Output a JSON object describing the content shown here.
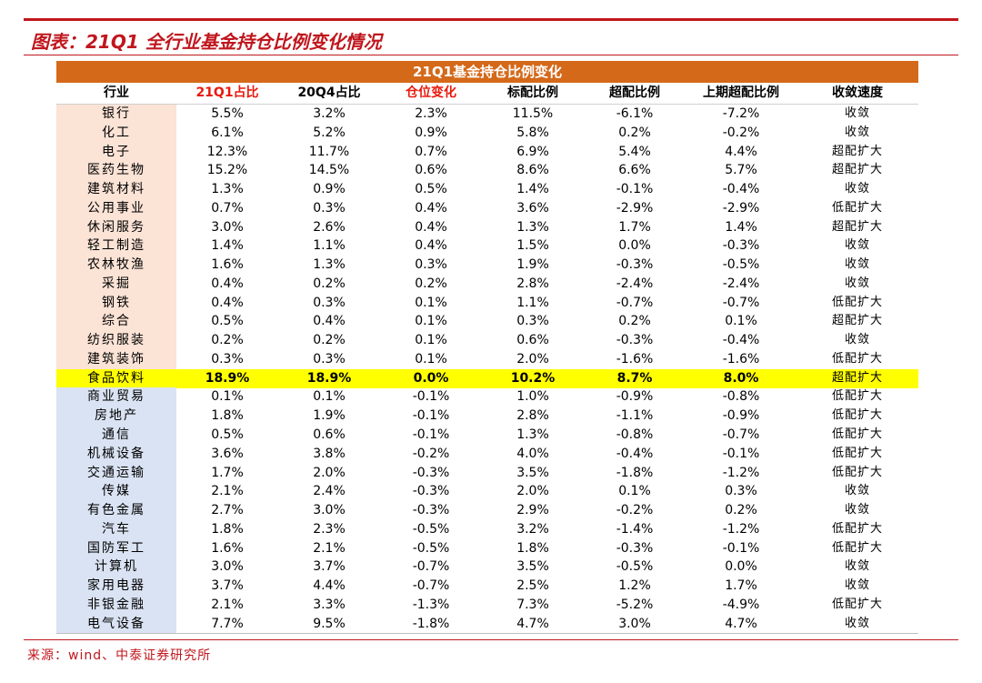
{
  "figure": {
    "title": "图表：21Q1 全行业基金持仓比例变化情况",
    "source": "来源：wind、中泰证券研究所"
  },
  "colors": {
    "brand_red": "#c0161d",
    "banner_orange": "#d4691a",
    "header_red": "#e8190c",
    "top_group_bg": "#fbe3d6",
    "bottom_group_bg": "#dae3f3",
    "highlight_yellow": "#ffff00"
  },
  "table": {
    "banner": "21Q1基金持仓比例变化",
    "headers": [
      "行业",
      "21Q1占比",
      "20Q4占比",
      "仓位变化",
      "标配比例",
      "超配比例",
      "上期超配比例",
      "收敛速度"
    ],
    "rows": [
      [
        "银行",
        "5.5%",
        "3.2%",
        "2.3%",
        "11.5%",
        "-6.1%",
        "-7.2%",
        "收敛"
      ],
      [
        "化工",
        "6.1%",
        "5.2%",
        "0.9%",
        "5.8%",
        "0.2%",
        "-0.2%",
        "收敛"
      ],
      [
        "电子",
        "12.3%",
        "11.7%",
        "0.7%",
        "6.9%",
        "5.4%",
        "4.4%",
        "超配扩大"
      ],
      [
        "医药生物",
        "15.2%",
        "14.5%",
        "0.6%",
        "8.6%",
        "6.6%",
        "5.7%",
        "超配扩大"
      ],
      [
        "建筑材料",
        "1.3%",
        "0.9%",
        "0.5%",
        "1.4%",
        "-0.1%",
        "-0.4%",
        "收敛"
      ],
      [
        "公用事业",
        "0.7%",
        "0.3%",
        "0.4%",
        "3.6%",
        "-2.9%",
        "-2.9%",
        "低配扩大"
      ],
      [
        "休闲服务",
        "3.0%",
        "2.6%",
        "0.4%",
        "1.3%",
        "1.7%",
        "1.4%",
        "超配扩大"
      ],
      [
        "轻工制造",
        "1.4%",
        "1.1%",
        "0.4%",
        "1.5%",
        "0.0%",
        "-0.3%",
        "收敛"
      ],
      [
        "农林牧渔",
        "1.6%",
        "1.3%",
        "0.3%",
        "1.9%",
        "-0.3%",
        "-0.5%",
        "收敛"
      ],
      [
        "采掘",
        "0.4%",
        "0.2%",
        "0.2%",
        "2.8%",
        "-2.4%",
        "-2.4%",
        "收敛"
      ],
      [
        "钢铁",
        "0.4%",
        "0.3%",
        "0.1%",
        "1.1%",
        "-0.7%",
        "-0.7%",
        "低配扩大"
      ],
      [
        "综合",
        "0.5%",
        "0.4%",
        "0.1%",
        "0.3%",
        "0.2%",
        "0.1%",
        "超配扩大"
      ],
      [
        "纺织服装",
        "0.2%",
        "0.2%",
        "0.1%",
        "0.6%",
        "-0.3%",
        "-0.4%",
        "收敛"
      ],
      [
        "建筑装饰",
        "0.3%",
        "0.3%",
        "0.1%",
        "2.0%",
        "-1.6%",
        "-1.6%",
        "低配扩大"
      ],
      [
        "食品饮料",
        "18.9%",
        "18.9%",
        "0.0%",
        "10.2%",
        "8.7%",
        "8.0%",
        "超配扩大"
      ],
      [
        "商业贸易",
        "0.1%",
        "0.1%",
        "-0.1%",
        "1.0%",
        "-0.9%",
        "-0.8%",
        "低配扩大"
      ],
      [
        "房地产",
        "1.8%",
        "1.9%",
        "-0.1%",
        "2.8%",
        "-1.1%",
        "-0.9%",
        "低配扩大"
      ],
      [
        "通信",
        "0.5%",
        "0.6%",
        "-0.1%",
        "1.3%",
        "-0.8%",
        "-0.7%",
        "低配扩大"
      ],
      [
        "机械设备",
        "3.6%",
        "3.8%",
        "-0.2%",
        "4.0%",
        "-0.4%",
        "-0.1%",
        "低配扩大"
      ],
      [
        "交通运输",
        "1.7%",
        "2.0%",
        "-0.3%",
        "3.5%",
        "-1.8%",
        "-1.2%",
        "低配扩大"
      ],
      [
        "传媒",
        "2.1%",
        "2.4%",
        "-0.3%",
        "2.0%",
        "0.1%",
        "0.3%",
        "收敛"
      ],
      [
        "有色金属",
        "2.7%",
        "3.0%",
        "-0.3%",
        "2.9%",
        "-0.2%",
        "0.2%",
        "收敛"
      ],
      [
        "汽车",
        "1.8%",
        "2.3%",
        "-0.5%",
        "3.2%",
        "-1.4%",
        "-1.2%",
        "低配扩大"
      ],
      [
        "国防军工",
        "1.6%",
        "2.1%",
        "-0.5%",
        "1.8%",
        "-0.3%",
        "-0.1%",
        "低配扩大"
      ],
      [
        "计算机",
        "3.0%",
        "3.7%",
        "-0.7%",
        "3.5%",
        "-0.5%",
        "0.0%",
        "收敛"
      ],
      [
        "家用电器",
        "3.7%",
        "4.4%",
        "-0.7%",
        "2.5%",
        "1.2%",
        "1.7%",
        "收敛"
      ],
      [
        "非银金融",
        "2.1%",
        "3.3%",
        "-1.3%",
        "7.3%",
        "-5.2%",
        "-4.9%",
        "低配扩大"
      ],
      [
        "电气设备",
        "7.7%",
        "9.5%",
        "-1.8%",
        "4.7%",
        "3.0%",
        "4.7%",
        "收敛"
      ]
    ]
  }
}
